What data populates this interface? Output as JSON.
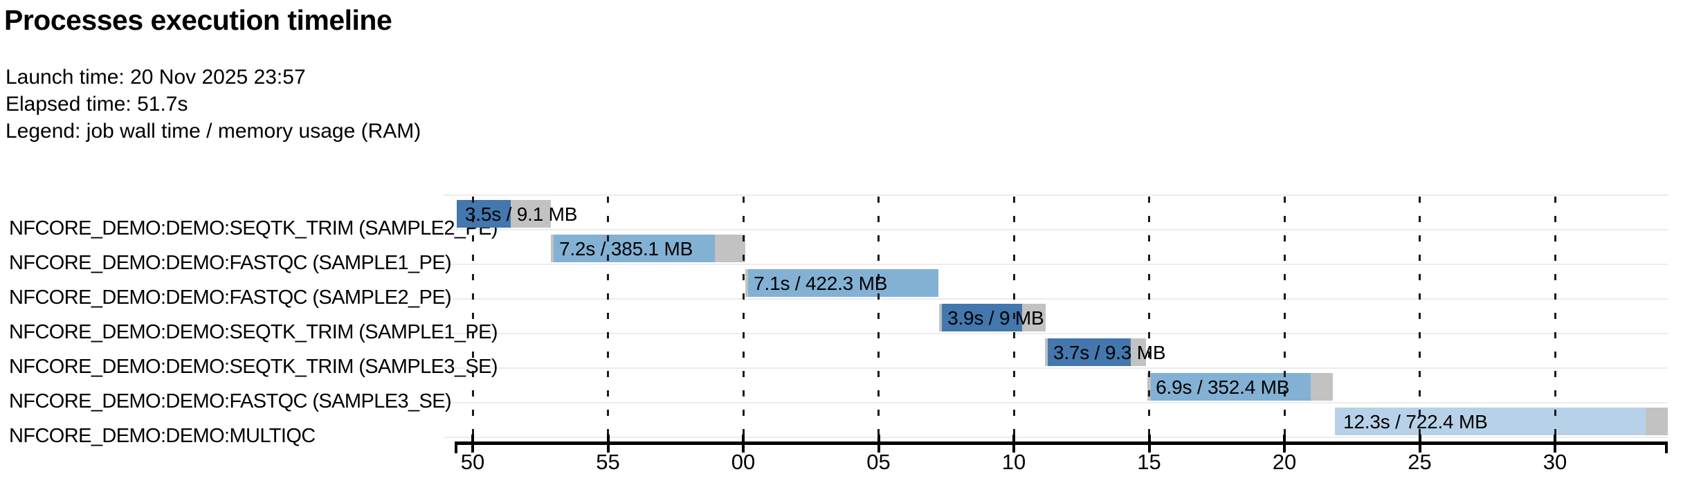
{
  "header": {
    "title": "Processes execution timeline",
    "launch_line": "Launch time: 20 Nov 2025 23:57",
    "elapsed_line": "Elapsed time: 51.7s",
    "legend_line": "Legend: job wall time / memory usage (RAM)"
  },
  "chart_data": {
    "type": "gantt",
    "title": "Processes execution timeline",
    "launch_time": "20 Nov 2025 23:57",
    "elapsed_time": "51.7s",
    "legend": "job wall time / memory usage (RAM)",
    "x_axis": {
      "unit": "seconds (clock seconds, wrapping past the minute)",
      "tick_labels": [
        "50",
        "55",
        "00",
        "05",
        "10",
        "15",
        "20",
        "25",
        "30"
      ],
      "tick_values_s": [
        50,
        55,
        60,
        65,
        70,
        75,
        80,
        85,
        90
      ],
      "axis_start_s": 49.35,
      "axis_end_s": 94.17,
      "gridlines": "vertical dashed line at every tick"
    },
    "colors": {
      "dark_blue": "#4377ae",
      "light_blue": "#82b1d4",
      "pale_blue": "#b7d2e8",
      "gray": "#c2c2c2",
      "separator": "#ececec",
      "gridline": "#1a1a1a",
      "axis": "#000000"
    },
    "tasks": [
      {
        "process": "NFCORE_DEMO:DEMO:SEQTK_TRIM (SAMPLE2_PE)",
        "label": "3.5s / 9.1 MB",
        "wall_time": "3.5s",
        "memory": "9.1 MB",
        "color": "dark_blue",
        "start_s": 49.41,
        "run_start_s": 49.41,
        "run_end_s": 51.41,
        "end_s": 52.89
      },
      {
        "process": "NFCORE_DEMO:DEMO:FASTQC (SAMPLE1_PE)",
        "label": "7.2s / 385.1 MB",
        "wall_time": "7.2s",
        "memory": "385.1 MB",
        "color": "light_blue",
        "start_s": 52.89,
        "run_start_s": 52.99,
        "run_end_s": 58.95,
        "end_s": 60.08
      },
      {
        "process": "NFCORE_DEMO:DEMO:FASTQC (SAMPLE2_PE)",
        "label": "7.1s / 422.3 MB",
        "wall_time": "7.1s",
        "memory": "422.3 MB",
        "color": "light_blue",
        "start_s": 60.08,
        "run_start_s": 60.18,
        "run_end_s": 67.21,
        "end_s": 67.21
      },
      {
        "process": "NFCORE_DEMO:DEMO:SEQTK_TRIM (SAMPLE1_PE)",
        "label": "3.9s / 9 MB",
        "wall_time": "3.9s",
        "memory": "9 MB",
        "color": "dark_blue",
        "start_s": 67.24,
        "run_start_s": 67.34,
        "run_end_s": 70.31,
        "end_s": 71.18
      },
      {
        "process": "NFCORE_DEMO:DEMO:SEQTK_TRIM (SAMPLE3_SE)",
        "label": "3.7s / 9.3 MB",
        "wall_time": "3.7s",
        "memory": "9.3 MB",
        "color": "dark_blue",
        "start_s": 71.15,
        "run_start_s": 71.25,
        "run_end_s": 74.32,
        "end_s": 74.88
      },
      {
        "process": "NFCORE_DEMO:DEMO:FASTQC (SAMPLE3_SE)",
        "label": "6.9s / 352.4 MB",
        "wall_time": "6.9s",
        "memory": "352.4 MB",
        "color": "light_blue",
        "start_s": 74.94,
        "run_start_s": 75.06,
        "run_end_s": 80.97,
        "end_s": 81.79
      },
      {
        "process": "NFCORE_DEMO:DEMO:MULTIQC",
        "label": "12.3s / 722.4 MB",
        "wall_time": "12.3s",
        "memory": "722.4 MB",
        "color": "pale_blue",
        "start_s": 81.87,
        "run_start_s": 81.87,
        "run_end_s": 93.35,
        "end_s": 94.17
      }
    ]
  }
}
